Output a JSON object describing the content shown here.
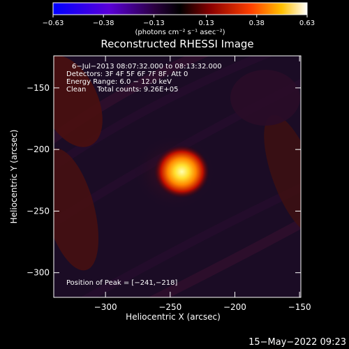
{
  "chart_data": {
    "type": "heatmap",
    "title": "Reconstructed RHESSI Image",
    "xlabel": "Heliocentric X (arcsec)",
    "ylabel": "Heliocentric Y (arcsec)",
    "xlim": [
      -340,
      -149
    ],
    "ylim": [
      -320,
      -124
    ],
    "x_ticks": [
      -300,
      -250,
      -200,
      -150
    ],
    "x_tick_labels": [
      "−300",
      "−250",
      "−200",
      "−150"
    ],
    "y_ticks": [
      -150,
      -200,
      -250,
      -300
    ],
    "y_tick_labels": [
      "−150",
      "−200",
      "−250",
      "−300"
    ],
    "colorbar": {
      "min": -0.63,
      "max": 0.63,
      "ticks": [
        -0.63,
        -0.38,
        -0.13,
        0.13,
        0.38,
        0.63
      ],
      "tick_labels": [
        "−0.63",
        "−0.38",
        "−0.13",
        "0.13",
        "0.38",
        "0.63"
      ],
      "unit_label": "(photons cm⁻² s⁻¹ asec⁻²)"
    },
    "peak": {
      "x": -241,
      "y": -218
    },
    "annotations": [
      "6−Jul−2013 08:07:32.000 to 08:13:32.000",
      "Detectors: 3F 4F 5F 6F 7F 8F, Att 0",
      "Energy Range: 6.0 − 12.0 keV",
      "Clean     Total counts: 9.26E+05"
    ],
    "peak_label": "Position of Peak = [−241,−218]"
  },
  "footer_date": "15−May−2022 09:23"
}
